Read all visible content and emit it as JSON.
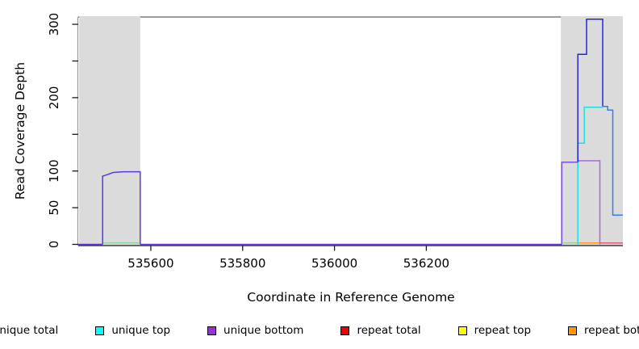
{
  "chart_data": {
    "type": "step-line",
    "title": "",
    "xlabel": "Coordinate in Reference Genome",
    "ylabel": "Read Coverage Depth",
    "xlim": [
      535442,
      536628
    ],
    "ylim": [
      0,
      310
    ],
    "grid": false,
    "x_ticks": [
      {
        "value": 535600,
        "label": "535600"
      },
      {
        "value": 535800,
        "label": "535800"
      },
      {
        "value": 536000,
        "label": "536000"
      },
      {
        "value": 536200,
        "label": "536200"
      }
    ],
    "y_ticks": [
      {
        "value": 0,
        "label": "0"
      },
      {
        "value": 50,
        "label": "50"
      },
      {
        "value": 100,
        "label": "100"
      },
      {
        "value": 150,
        "label": ""
      },
      {
        "value": 200,
        "label": "200"
      },
      {
        "value": 250,
        "label": ""
      },
      {
        "value": 300,
        "label": "300"
      }
    ],
    "highlight_regions": [
      {
        "x0": 535444,
        "x1": 535577,
        "color": "#dbdbdb"
      },
      {
        "x0": 536493,
        "x1": 536628,
        "color": "#dbdbdb"
      }
    ],
    "series": [
      {
        "name": "baseline-unique-overlap",
        "legend": "unique total + unique bottom at 0",
        "color": "#5d35dd",
        "points": [
          [
            535442,
            0
          ],
          [
            535495,
            0
          ]
        ]
      },
      {
        "name": "unique-peak-left-overlap",
        "legend": "unique total + unique bottom",
        "color": "#5d35dd",
        "points": [
          [
            535495,
            0
          ],
          [
            535495,
            93
          ],
          [
            535505,
            95
          ],
          [
            535518,
            98
          ],
          [
            535540,
            99
          ],
          [
            535577,
            99
          ],
          [
            535577,
            0
          ]
        ]
      },
      {
        "name": "baseline-mid-unique-overlap",
        "legend": "unique total + unique bottom at 0",
        "color": "#5d35dd",
        "points": [
          [
            535577,
            0
          ],
          [
            536495,
            0
          ]
        ]
      },
      {
        "name": "repeat-top-zero-left",
        "legend": "repeat top at 0",
        "color": "#8fd49b",
        "points": [
          [
            535497,
            2
          ],
          [
            535575,
            2
          ]
        ]
      },
      {
        "name": "repeat-top-zero-right",
        "legend": "repeat top at 0",
        "color": "#8fd49b",
        "points": [
          [
            536497,
            2
          ],
          [
            536530,
            2
          ]
        ]
      },
      {
        "name": "repeat-bottom-zero",
        "legend": "repeat bottom at 0",
        "color": "#ff9a1e",
        "points": [
          [
            536530,
            2
          ],
          [
            536578,
            2
          ]
        ]
      },
      {
        "name": "repeat-total-zero",
        "legend": "repeat total at 0",
        "color": "#e8587a",
        "points": [
          [
            536578,
            2
          ],
          [
            536628,
            2
          ]
        ]
      },
      {
        "name": "unique-bottom-rise-overlap",
        "legend": "unique bottom + unique total",
        "color": "#7b50e0",
        "points": [
          [
            536495,
            0
          ],
          [
            536495,
            112
          ],
          [
            536530,
            112
          ]
        ]
      },
      {
        "name": "unique-top",
        "legend": "unique top",
        "color": "#17e0e0",
        "points": [
          [
            536530,
            0
          ],
          [
            536530,
            138
          ],
          [
            536544,
            138
          ],
          [
            536544,
            187
          ],
          [
            536584,
            187
          ]
        ]
      },
      {
        "name": "unique-bottom-right",
        "legend": "unique bottom",
        "color": "#a76ae0",
        "points": [
          [
            536530,
            112
          ],
          [
            536530,
            114
          ],
          [
            536578,
            114
          ],
          [
            536578,
            0
          ]
        ]
      },
      {
        "name": "unique-total",
        "legend": "unique total",
        "color": "#2424dd",
        "points": [
          [
            536530,
            112
          ],
          [
            536530,
            259
          ],
          [
            536549,
            259
          ],
          [
            536549,
            307
          ],
          [
            536584,
            307
          ],
          [
            536584,
            188
          ]
        ]
      },
      {
        "name": "unique-total-over-top",
        "legend": "unique total over unique top",
        "color": "#3b7ce8",
        "points": [
          [
            536584,
            188
          ],
          [
            536595,
            188
          ],
          [
            536595,
            183
          ],
          [
            536606,
            183
          ],
          [
            536606,
            40
          ],
          [
            536628,
            40
          ]
        ]
      }
    ],
    "legend": {
      "items": [
        {
          "label": "unique total",
          "color": "#0000e6"
        },
        {
          "label": "unique top",
          "color": "#00ffff"
        },
        {
          "label": "unique bottom",
          "color": "#9932cc"
        },
        {
          "label": "repeat total",
          "color": "#ee0000"
        },
        {
          "label": "repeat top",
          "color": "#ffff00"
        },
        {
          "label": "repeat bottom",
          "color": "#ff9900"
        }
      ]
    }
  }
}
